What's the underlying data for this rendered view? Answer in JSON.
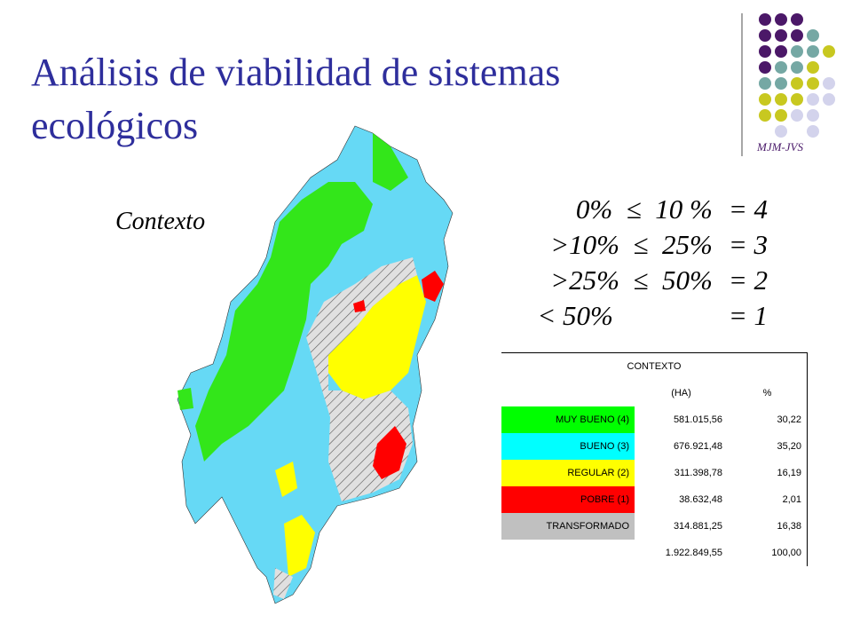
{
  "title": "Análisis de viabilidad de sistemas ecológicos",
  "logo_text": "MJM-JVS",
  "subtitle": "Contexto",
  "rules": [
    {
      "range": "0%  ≤  10 %",
      "score": "= 4"
    },
    {
      "range": ">10%  ≤  25%",
      "score": "= 3"
    },
    {
      "range": ">25%  ≤  50%",
      "score": "= 2"
    },
    {
      "range": "< 50%",
      "score": "= 1"
    }
  ],
  "table": {
    "title": "CONTEXTO",
    "header": [
      "(HA)",
      "%"
    ],
    "rows": [
      [
        "MUY BUENO (4)",
        "581.015,56",
        "30,22"
      ],
      [
        "BUENO (3)",
        "676.921,48",
        "35,20"
      ],
      [
        "REGULAR (2)",
        "311.398,78",
        "16,19"
      ],
      [
        "POBRE (1)",
        "38.632,48",
        "2,01"
      ],
      [
        "TRANSFORMADO",
        "314.881,25",
        "16,38"
      ]
    ],
    "total": [
      "1.922.849,55",
      "100,00"
    ]
  }
}
